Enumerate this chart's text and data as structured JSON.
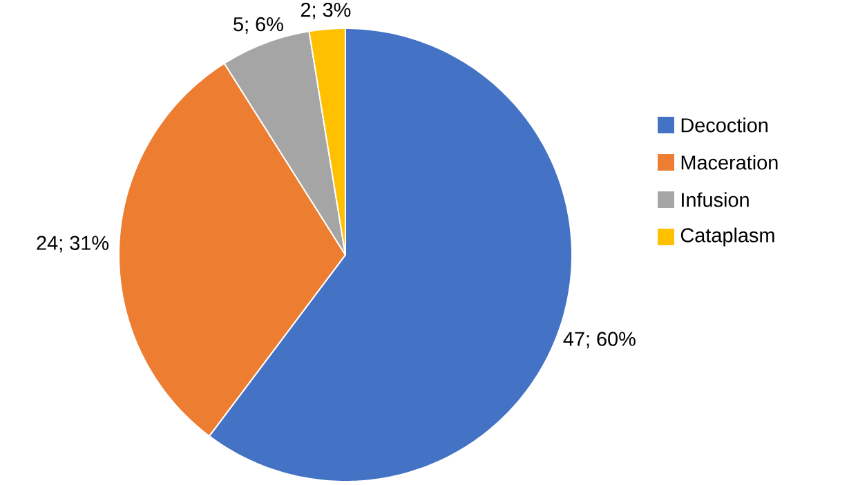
{
  "chart_data": {
    "type": "pie",
    "categories": [
      "Decoction",
      "Maceration",
      "Infusion",
      "Cataplasm"
    ],
    "values": [
      47,
      24,
      5,
      2
    ],
    "colors": [
      "#4472c4",
      "#ed7d31",
      "#a5a5a5",
      "#ffc000"
    ],
    "value_labels": [
      "47; 60%",
      "24; 31%",
      "5; 6%",
      "2; 3%"
    ],
    "legend": "right"
  }
}
